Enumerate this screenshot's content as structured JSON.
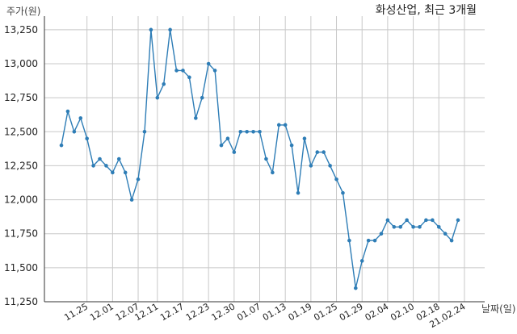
{
  "chart_data": {
    "type": "line",
    "title": "화성산업, 최근 3개월",
    "ylabel": "주가(원)",
    "xlabel": "날짜(일)",
    "ylim": [
      11250,
      13350
    ],
    "yticks": [
      11250,
      11500,
      11750,
      12000,
      12250,
      12500,
      12750,
      13000,
      13250
    ],
    "ytick_labels": [
      "11,250",
      "11,500",
      "11,750",
      "12,000",
      "12,250",
      "12,500",
      "12,750",
      "13,000",
      "13,250"
    ],
    "xtick_labels": [
      "11.25",
      "12.01",
      "12.07",
      "12.11",
      "12.17",
      "12.23",
      "12.30",
      "01.07",
      "01.13",
      "01.19",
      "01.25",
      "01.29",
      "02.04",
      "02.10",
      "02.18",
      "21.02.24"
    ],
    "xtick_positions": [
      4,
      8,
      12,
      15,
      19,
      23,
      27,
      31,
      35,
      39,
      43,
      47,
      51,
      55,
      59,
      63
    ],
    "grid": true,
    "color": "#2e7db6",
    "series": [
      {
        "values": [
          12400,
          12650,
          12500,
          12600,
          12450,
          12250,
          12300,
          12250,
          12200,
          12300,
          12200,
          12000,
          12150,
          12500,
          13250,
          12750,
          12850,
          13250,
          12950,
          12950,
          12900,
          12600,
          12750,
          13000,
          12950,
          12400,
          12450,
          12350,
          12500,
          12500,
          12500,
          12500,
          12300,
          12200,
          12550,
          12550,
          12400,
          12050,
          12450,
          12250,
          12350,
          12350,
          12250,
          12150,
          12050,
          11700,
          11350,
          11550,
          11700,
          11700,
          11750,
          11850,
          11800,
          11800,
          11850,
          11800,
          11800,
          11850,
          11850,
          11800,
          11750,
          11700,
          11850
        ]
      }
    ]
  }
}
